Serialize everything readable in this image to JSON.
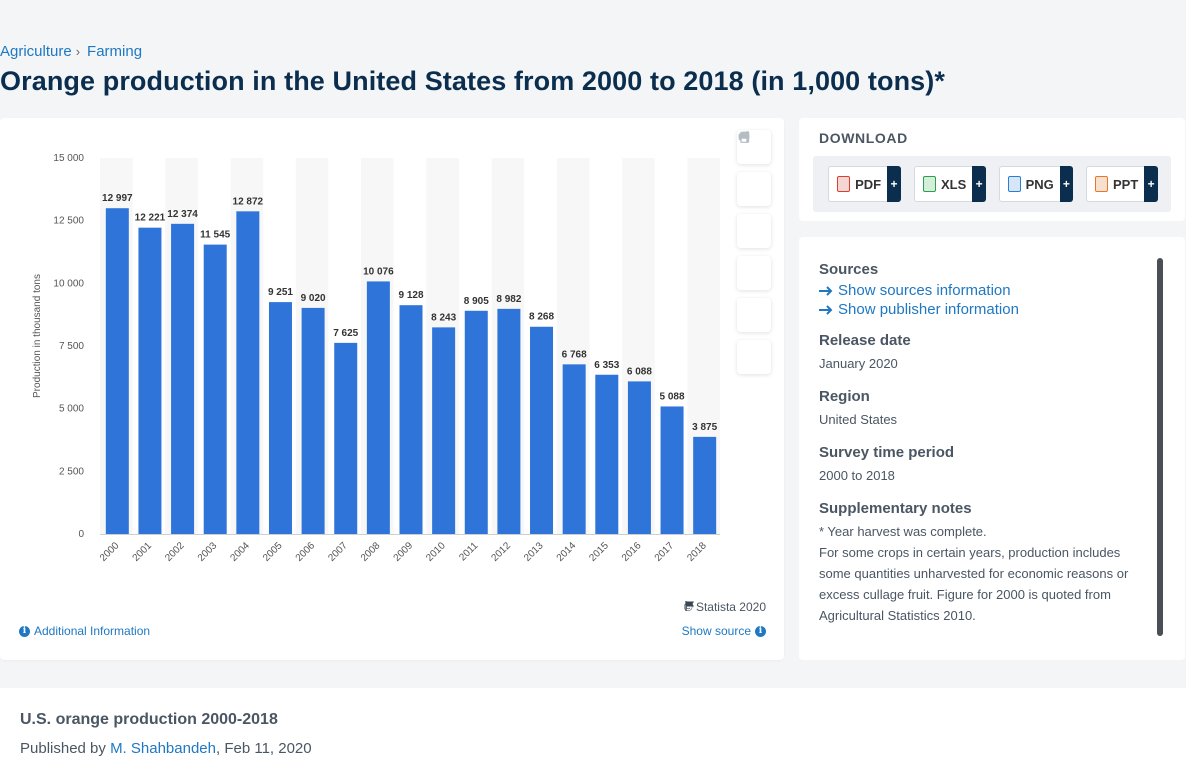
{
  "breadcrumb": {
    "items": [
      "Agriculture",
      "Farming"
    ],
    "separator": "›"
  },
  "page_title": "Orange production in the United States from 2000 to 2018 (in 1,000 tons)*",
  "chart_data": {
    "type": "bar",
    "title": "",
    "xlabel": "",
    "ylabel": "Production in thousand tons",
    "categories": [
      "2000",
      "2001",
      "2002",
      "2003",
      "2004",
      "2005",
      "2006",
      "2007",
      "2008",
      "2009",
      "2010",
      "2011",
      "2012",
      "2013",
      "2014",
      "2015",
      "2016",
      "2017",
      "2018"
    ],
    "values": [
      12997,
      12221,
      12374,
      11545,
      12872,
      9251,
      9020,
      7625,
      10076,
      9128,
      8243,
      8905,
      8982,
      8268,
      6768,
      6353,
      6088,
      5088,
      3875
    ],
    "data_labels": [
      "12 997",
      "12 221",
      "12 374",
      "11 545",
      "12 872",
      "9 251",
      "9 020",
      "7 625",
      "10 076",
      "9 128",
      "8 243",
      "8 905",
      "8 982",
      "8 268",
      "6 768",
      "6 353",
      "6 088",
      "5 088",
      "3 875"
    ],
    "ylim": [
      0,
      15000
    ],
    "yticks": [
      0,
      2500,
      5000,
      7500,
      10000,
      12500,
      15000
    ],
    "ytick_labels": [
      "0",
      "2 500",
      "5 000",
      "7 500",
      "10 000",
      "12 500",
      "15 000"
    ],
    "bar_color": "#2f74d9",
    "grid": false
  },
  "chart_footer": {
    "copyright": "© Statista 2020",
    "additional_info": "Additional Information",
    "show_source": "Show source"
  },
  "tools": [
    "star-icon",
    "bell-icon",
    "gear-icon",
    "share-icon",
    "quote-icon",
    "print-icon"
  ],
  "download": {
    "title": "DOWNLOAD",
    "buttons": [
      {
        "label": "PDF",
        "plus": "+",
        "color": "#e03c31"
      },
      {
        "label": "XLS",
        "plus": "+",
        "color": "#2e9e4c"
      },
      {
        "label": "PNG",
        "plus": "+",
        "color": "#2a7fd4"
      },
      {
        "label": "PPT",
        "plus": "+",
        "color": "#e6762b"
      }
    ]
  },
  "meta": {
    "sources_label": "Sources",
    "show_sources": "Show sources information",
    "show_publisher": "Show publisher information",
    "release_label": "Release date",
    "release_value": "January 2020",
    "region_label": "Region",
    "region_value": "United States",
    "survey_label": "Survey time period",
    "survey_value": "2000 to 2018",
    "notes_label": "Supplementary notes",
    "notes_line1": "* Year harvest was complete.",
    "notes_line2": "For some crops in certain years, production includes some quantities unharvested for economic reasons or excess cullage fruit. Figure for 2000 is quoted from Agricultural Statistics 2010."
  },
  "bottom": {
    "title": "U.S. orange production 2000-2018",
    "published_prefix": "Published by ",
    "author": "M. Shahbandeh",
    "date": ", Feb 11, 2020"
  }
}
